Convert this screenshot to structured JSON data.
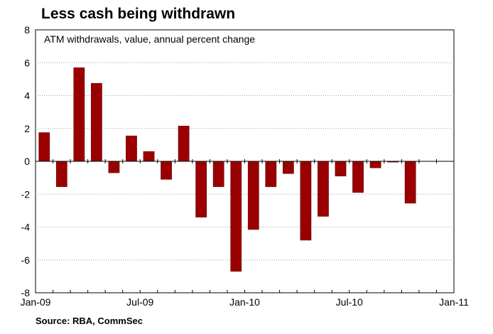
{
  "chart_data": {
    "type": "bar",
    "title": "Less cash being withdrawn",
    "subtitle": "ATM withdrawals, value, annual percent change",
    "source": "Source: RBA, CommSec",
    "xlabel": "",
    "ylabel": "",
    "ylim": [
      -8,
      8
    ],
    "yticks": [
      -8,
      -6,
      -4,
      -2,
      0,
      2,
      4,
      6,
      8
    ],
    "xlim": [
      "2009-01",
      "2011-01"
    ],
    "xtick_labels": [
      "Jan-09",
      "Jul-09",
      "Jan-10",
      "Jul-10",
      "Jan-11"
    ],
    "grid": true,
    "legend": "none",
    "categories": [
      "2009-01",
      "2009-02",
      "2009-03",
      "2009-04",
      "2009-05",
      "2009-06",
      "2009-07",
      "2009-08",
      "2009-09",
      "2009-10",
      "2009-11",
      "2009-12",
      "2010-01",
      "2010-02",
      "2010-03",
      "2010-04",
      "2010-05",
      "2010-06",
      "2010-07",
      "2010-08",
      "2010-09",
      "2010-10"
    ],
    "values": [
      1.75,
      -1.55,
      5.7,
      4.75,
      -0.7,
      1.55,
      0.6,
      -1.1,
      2.15,
      -3.4,
      -1.55,
      -6.7,
      -4.15,
      -1.55,
      -0.75,
      -4.8,
      -3.35,
      -0.9,
      -1.9,
      -0.4,
      -0.05,
      -2.55
    ],
    "colors": {
      "bar": "#9a0000",
      "bar_stroke": "#5a0000",
      "grid": "#a0a0a0",
      "axis": "#000000"
    }
  }
}
